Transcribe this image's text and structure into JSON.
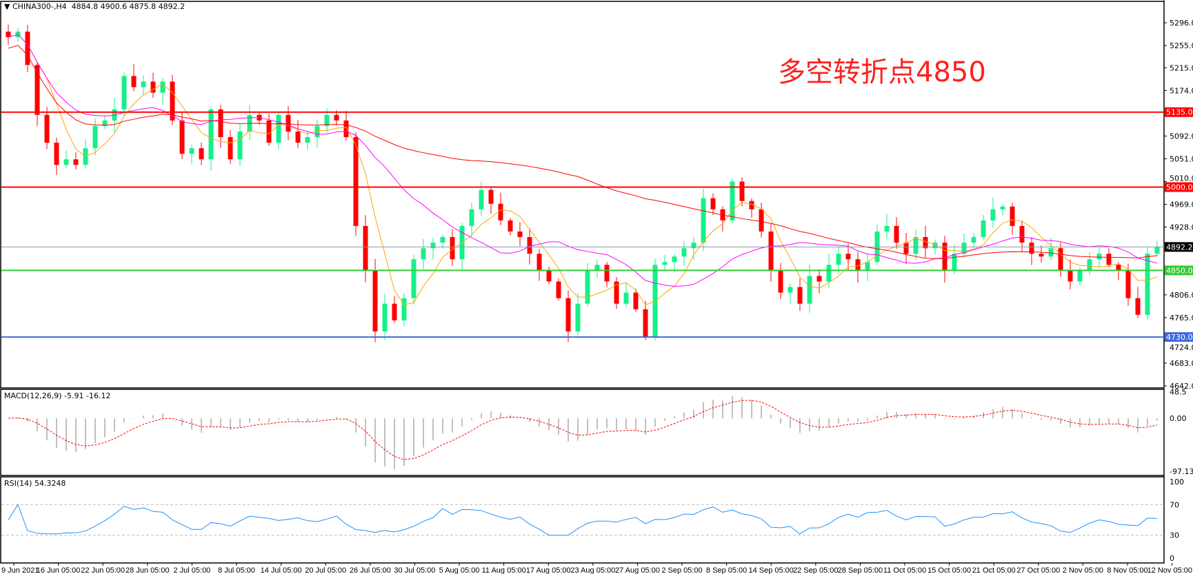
{
  "header": {
    "symbol": "CHINA300-,H4",
    "ohlc": "4884.8 4900.6 4875.8 4892.2"
  },
  "annotation": "多空转折点4850",
  "macd_label": "MACD(12,26,9) -5.91 -16.12",
  "rsi_label": "RSI(14) 54.3248",
  "colors": {
    "bull": "#16F08A",
    "bear": "#FF0000",
    "ma_fast": "#FFA500",
    "ma_mid": "#FF00FF",
    "ma_slow": "#FF0000",
    "rsi": "#1E90FF",
    "macd_hist": "#C0C0C0",
    "macd_signal": "#FF0000"
  },
  "chart_data": {
    "type": "candlestick",
    "price_axis": {
      "range": [
        4642,
        5296
      ],
      "ticks": [
        "5296.0",
        "5255.0",
        "5215.0",
        "5174.0",
        "5092.0",
        "5051.0",
        "5010.0",
        "4969.0",
        "4928.0",
        "4806.0",
        "4765.0",
        "4724.0",
        "4683.0",
        "4642.0"
      ]
    },
    "levels": [
      {
        "value": 5135.0,
        "label": "5135.0",
        "color": "#FF0000"
      },
      {
        "value": 5000.0,
        "label": "5000.0",
        "color": "#FF0000"
      },
      {
        "value": 4850.0,
        "label": "4850.0",
        "color": "#33CC33"
      },
      {
        "value": 4730.0,
        "label": "4730.0",
        "color": "#4169E1"
      },
      {
        "value": 4892.2,
        "label": "4892.2",
        "color": "#8899AA",
        "current": true
      }
    ],
    "closes": [
      5270,
      5280,
      5220,
      5130,
      5080,
      5040,
      5050,
      5040,
      5070,
      5110,
      5120,
      5140,
      5200,
      5180,
      5190,
      5170,
      5190,
      5120,
      5060,
      5070,
      5050,
      5140,
      5090,
      5050,
      5100,
      5130,
      5120,
      5080,
      5130,
      5100,
      5080,
      5090,
      5110,
      5130,
      5120,
      5090,
      4930,
      4850,
      4740,
      4790,
      4760,
      4800,
      4870,
      4890,
      4900,
      4910,
      4870,
      4930,
      4960,
      4995,
      4970,
      4940,
      4920,
      4910,
      4880,
      4850,
      4830,
      4800,
      4740,
      4790,
      4850,
      4860,
      4830,
      4790,
      4810,
      4780,
      4730,
      4860,
      4865,
      4875,
      4890,
      4900,
      4980,
      4960,
      4940,
      5010,
      4975,
      4960,
      4920,
      4850,
      4810,
      4820,
      4790,
      4840,
      4830,
      4860,
      4880,
      4870,
      4850,
      4865,
      4920,
      4930,
      4900,
      4880,
      4910,
      4890,
      4900,
      4850,
      4880,
      4900,
      4910,
      4940,
      4960,
      4965,
      4930,
      4900,
      4880,
      4875,
      4890,
      4850,
      4830,
      4850,
      4870,
      4880,
      4860,
      4850,
      4800,
      4770,
      4880,
      4892.2
    ],
    "x_ticks": [
      "9 Jun 2021",
      "16 Jun 05:00",
      "22 Jun 05:00",
      "28 Jun 05:00",
      "2 Jul 05:00",
      "8 Jul 05:00",
      "14 Jul 05:00",
      "20 Jul 05:00",
      "26 Jul 05:00",
      "30 Jul 05:00",
      "5 Aug 05:00",
      "11 Aug 05:00",
      "17 Aug 05:00",
      "23 Aug 05:00",
      "27 Aug 05:00",
      "2 Sep 05:00",
      "8 Sep 05:00",
      "14 Sep 05:00",
      "22 Sep 05:00",
      "28 Sep 05:00",
      "11 Oct 05:00",
      "15 Oct 05:00",
      "21 Oct 05:00",
      "27 Oct 05:00",
      "2 Nov 05:00",
      "8 Nov 05:00",
      "12 Nov 05:00"
    ],
    "macd_axis": {
      "range": [
        -97.13,
        48.5
      ],
      "ticks": [
        "48.5",
        "0.00",
        "-97.13"
      ]
    },
    "rsi_axis": {
      "range": [
        0,
        100
      ],
      "ticks": [
        "100",
        "70",
        "30",
        "0"
      ]
    }
  }
}
